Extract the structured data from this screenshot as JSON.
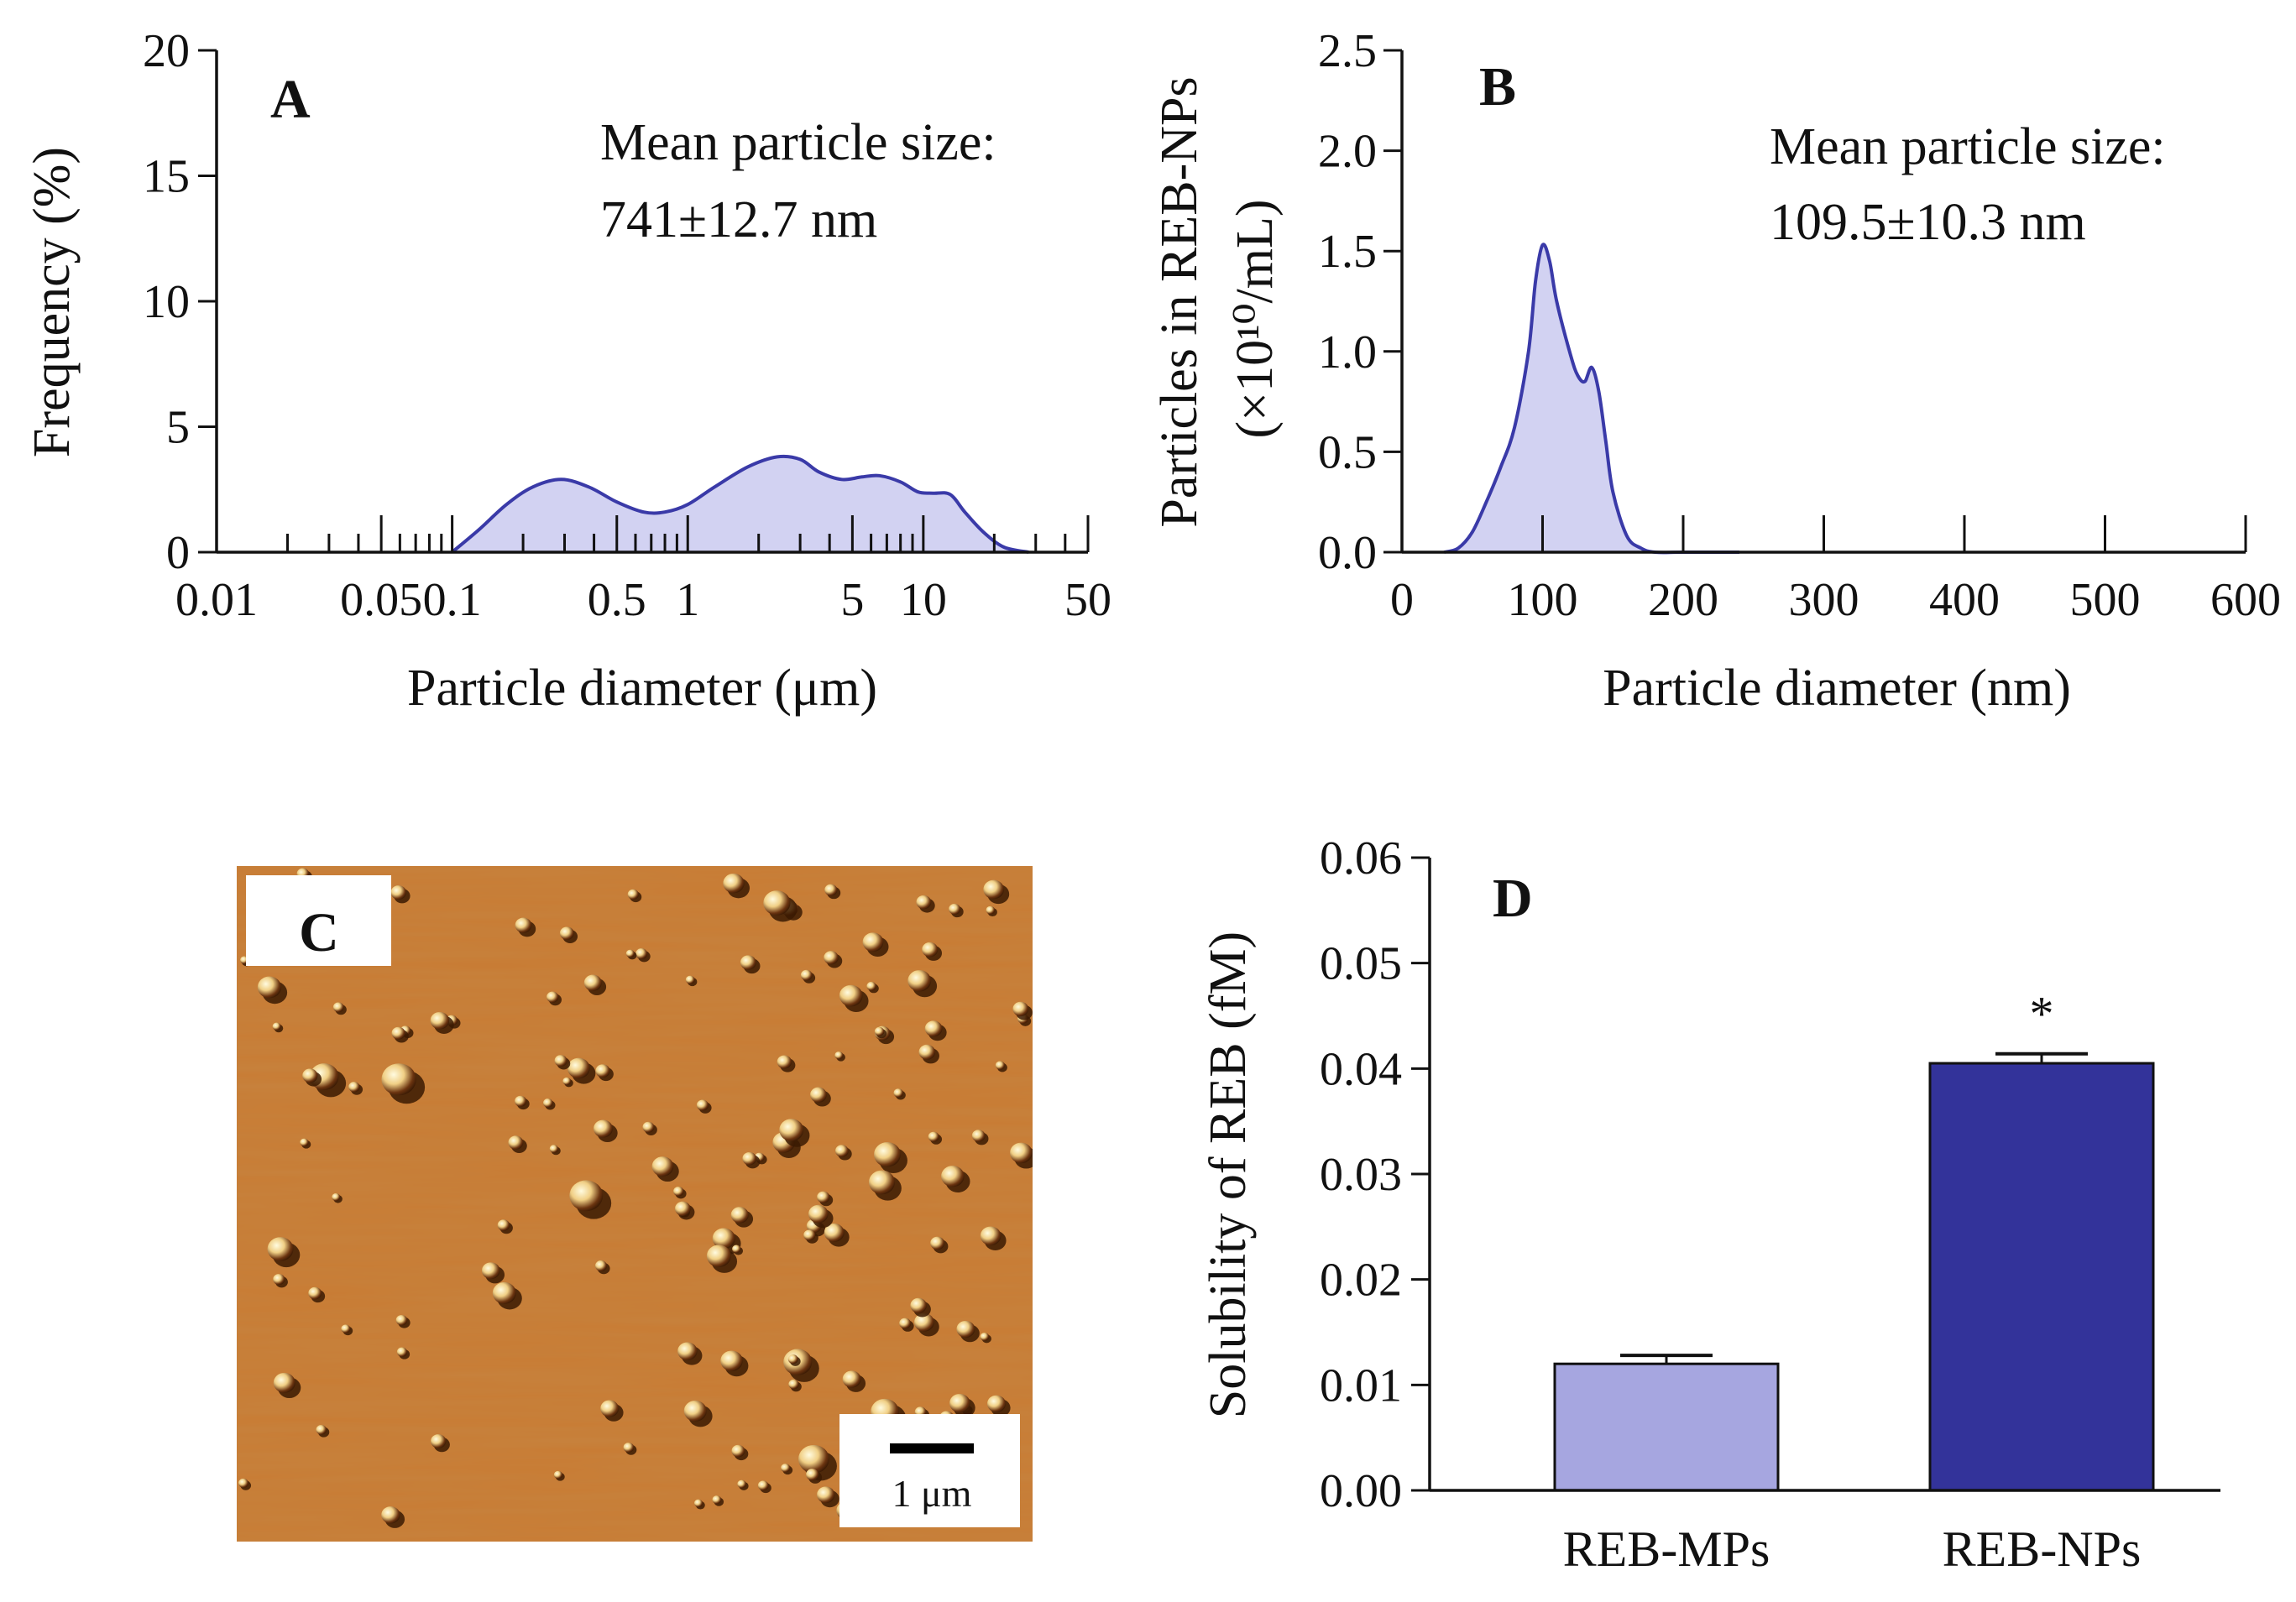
{
  "chart_data": [
    {
      "panel": "A",
      "type": "area",
      "xscale": "log",
      "xlabel": "Particle diameter (μm)",
      "ylabel": "Frequency (%)",
      "xlim": [
        0.01,
        50
      ],
      "ylim": [
        0,
        20
      ],
      "xticks": [
        0.01,
        0.05,
        0.1,
        0.5,
        1,
        5,
        10,
        50
      ],
      "xtick_labels": [
        "0.01",
        "0.05",
        "0.1",
        "0.5",
        "1",
        "5",
        "10",
        "50"
      ],
      "yticks": [
        0,
        5,
        10,
        15,
        20
      ],
      "ytick_labels": [
        "0",
        "5",
        "10",
        "15",
        "20"
      ],
      "annotation": [
        "Mean particle size:",
        "741±12.7 nm"
      ],
      "series": [
        {
          "name": "REB-MPs",
          "x": [
            0.1,
            0.13,
            0.17,
            0.22,
            0.29,
            0.38,
            0.5,
            0.65,
            0.8,
            1.0,
            1.3,
            1.8,
            2.4,
            3.0,
            3.6,
            4.5,
            5.5,
            6.5,
            8.0,
            9.5,
            11,
            13,
            15,
            18,
            22,
            28
          ],
          "y": [
            0.0,
            0.9,
            1.9,
            2.6,
            2.9,
            2.6,
            2.0,
            1.6,
            1.6,
            1.9,
            2.6,
            3.4,
            3.8,
            3.7,
            3.2,
            2.9,
            3.0,
            3.05,
            2.8,
            2.4,
            2.35,
            2.3,
            1.6,
            0.8,
            0.2,
            0.0
          ]
        }
      ]
    },
    {
      "panel": "B",
      "type": "area",
      "xlabel": "Particle diameter (nm)",
      "ylabel_line1": "Particles in REB-NPs",
      "ylabel_line2": "(×10¹⁰/mL)",
      "xlim": [
        0,
        600
      ],
      "ylim": [
        0,
        2.5
      ],
      "xticks": [
        0,
        100,
        200,
        300,
        400,
        500,
        600
      ],
      "xtick_labels": [
        "0",
        "100",
        "200",
        "300",
        "400",
        "500",
        "600"
      ],
      "yticks": [
        0,
        0.5,
        1.0,
        1.5,
        2.0,
        2.5
      ],
      "ytick_labels": [
        "0.0",
        "0.5",
        "1.0",
        "1.5",
        "2.0",
        "2.5"
      ],
      "annotation": [
        "Mean particle size:",
        "109.5±10.3 nm"
      ],
      "series": [
        {
          "name": "REB-NPs",
          "x": [
            30,
            40,
            50,
            60,
            70,
            80,
            90,
            95,
            100,
            105,
            110,
            120,
            125,
            130,
            135,
            140,
            145,
            150,
            160,
            170,
            180,
            200,
            240
          ],
          "y": [
            0.0,
            0.02,
            0.1,
            0.25,
            0.42,
            0.62,
            1.0,
            1.35,
            1.53,
            1.45,
            1.25,
            0.98,
            0.88,
            0.85,
            0.92,
            0.8,
            0.55,
            0.3,
            0.08,
            0.02,
            0.0,
            0.0,
            0.0
          ]
        }
      ]
    },
    {
      "panel": "D",
      "type": "bar",
      "ylabel": "Solubility of REB (fM)",
      "categories": [
        "REB-MPs",
        "REB-NPs"
      ],
      "values": [
        0.012,
        0.0405
      ],
      "errors": [
        0.0008,
        0.0009
      ],
      "significance": [
        "",
        "*"
      ],
      "bar_colors": [
        "#a6a6e0",
        "#33339a"
      ],
      "ylim": [
        0,
        0.06
      ],
      "yticks": [
        0,
        0.01,
        0.02,
        0.03,
        0.04,
        0.05,
        0.06
      ],
      "ytick_labels": [
        "0.00",
        "0.01",
        "0.02",
        "0.03",
        "0.04",
        "0.05",
        "0.06"
      ]
    }
  ],
  "panel_c": {
    "letter": "C",
    "scale_bar_label": "1 μm"
  },
  "colors": {
    "area_fill": "#d2d2f2",
    "area_line": "#3a3aa8",
    "afm_base": "#c87b33"
  }
}
